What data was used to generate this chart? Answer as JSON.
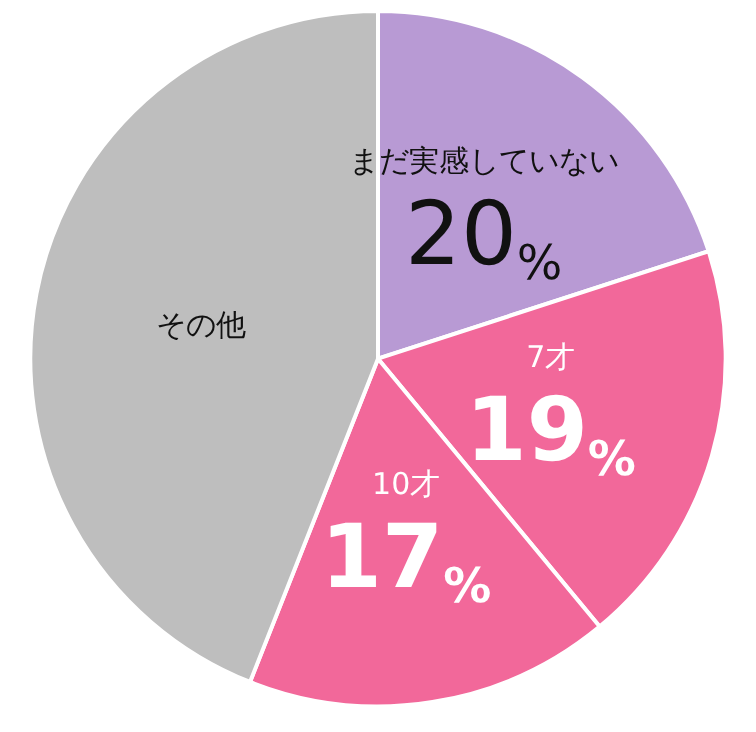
{
  "chart_data": {
    "type": "pie",
    "categories": [
      "まだ実感していない",
      "7才",
      "10才",
      "その他"
    ],
    "values": [
      20,
      19,
      17,
      44
    ],
    "value_labels": [
      "20%",
      "19%",
      "17%",
      null
    ],
    "colors": [
      "#b89ad4",
      "#f2689a",
      "#f2689a",
      "#bebebe"
    ],
    "legend": false
  }
}
